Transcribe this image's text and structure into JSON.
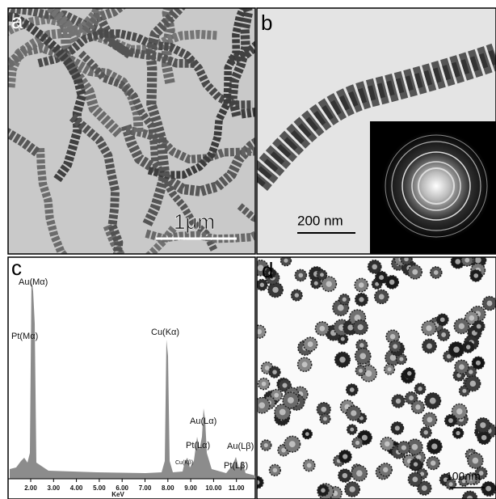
{
  "panels": [
    {
      "label": "a",
      "scale_bar": "1μm"
    },
    {
      "label": "b",
      "scale_bar": "200 nm"
    },
    {
      "label": "c",
      "peaks": [
        "Au(Mα)",
        "Pt(Mα)",
        "Cu(Kα)",
        "Au(Lα)",
        "Pt(Lα)",
        "Cu(Kβ)",
        "Au(Lβ)",
        "Pt(Lβ)"
      ],
      "x_ticks": [
        "2.00",
        "3.00",
        "4.00",
        "5.00",
        "6.00",
        "7.00",
        "8.00",
        "9.00",
        "10.00",
        "11.00"
      ],
      "x_axis_label": "KeV"
    },
    {
      "label": "d",
      "scale_bar": "100nm"
    }
  ]
}
